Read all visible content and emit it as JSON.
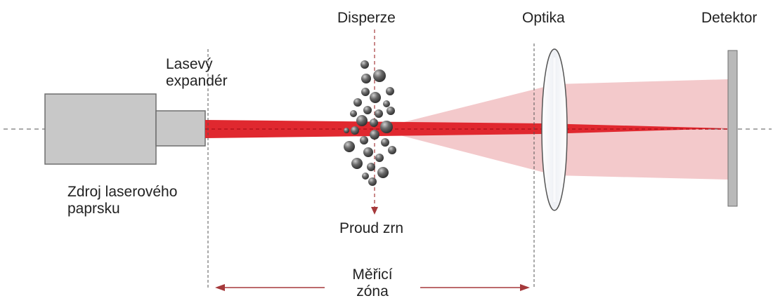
{
  "labels": {
    "disperze": "Disperze",
    "optika": "Optika",
    "detektor": "Detektor",
    "expander_line1": "Lasevý",
    "expander_line2": "expandér",
    "source_line1": "Zdroj laserového",
    "source_line2": "paprsku",
    "grain_stream": "Proud zrn",
    "zone_line1": "Měřicí",
    "zone_line2": "zóna"
  },
  "colors": {
    "beam": "#e0282f",
    "beam_dark": "#b3121b",
    "scatter_cone": "#f3c9cb",
    "laser_body": "#c8c8c8",
    "laser_outline": "#6e6e6e",
    "lens_fill": "#f4f4f8",
    "lens_outline": "#555555",
    "detector": "#b9b9b9",
    "arrow": "#a5393b",
    "guide_line": "#555555",
    "particle": "#4d4d4d"
  }
}
